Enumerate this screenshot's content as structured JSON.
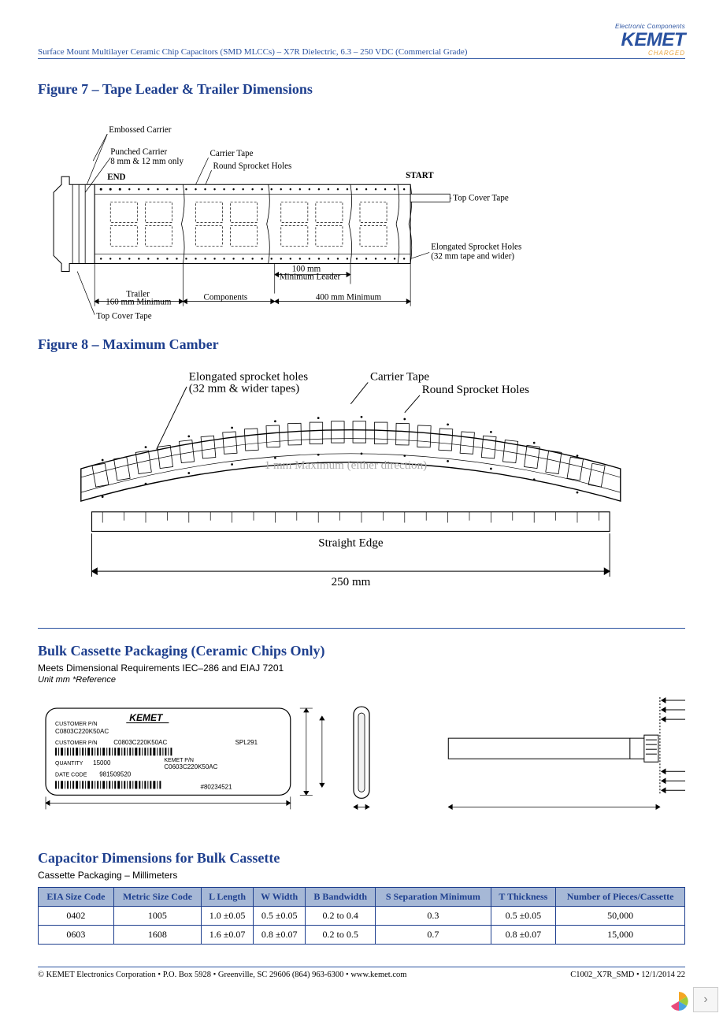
{
  "header": {
    "doc_title": "Surface Mount Multilayer Ceramic Chip Capacitors (SMD MLCCs) – X7R Dielectric, 6.3 – 250 VDC (Commercial Grade)",
    "logo_top": "Electronic Components",
    "logo_main": "KEMET",
    "logo_sub": "CHARGED"
  },
  "fig7": {
    "title": "Figure 7 – Tape Leader & Trailer Dimensions",
    "labels": {
      "embossed": "Embossed Carrier",
      "punched": "Punched Carrier\n8 mm & 12 mm only",
      "carrier_tape": "Carrier Tape",
      "round_holes": "Round Sprocket Holes",
      "start": "START",
      "end": "END",
      "top_cover": "Top Cover Tape",
      "top_cover2": "Top Cover Tape",
      "elongated": "Elongated Sprocket Holes\n(32 mm tape and wider)",
      "leader100": "100 mm\nMinimum Leader",
      "trailer": "Trailer\n160 mm Minimum",
      "components": "Components",
      "min400": "400 mm Minimum"
    }
  },
  "fig8": {
    "title": "Figure 8 – Maximum Camber",
    "labels": {
      "elongated": "Elongated sprocket holes\n(32 mm & wider tapes)",
      "carrier_tape": "Carrier Tape",
      "round_holes": "Round Sprocket Holes",
      "straight_edge": "Straight Edge",
      "note": "1 mm Maximum (either direction)",
      "len": "250 mm"
    }
  },
  "bulk": {
    "title": "Bulk Cassette Packaging (Ceramic Chips Only)",
    "meets": "Meets Dimensional Requirements IEC–286 and EIAJ 7201",
    "unit": "Unit mm *Reference",
    "card": {
      "kemet": "KEMET",
      "cust_pn_lbl": "CUSTOMER P/N",
      "cust_pn": "C0803C220K50AC",
      "cust_pn2_lbl": "CUSTOMER P/N",
      "cust_pn2": "C0803C220K50AC",
      "spl": "SPL291",
      "qty_lbl": "QUANTITY",
      "qty": "15000",
      "kemet_pn_lbl": "KEMET P/N",
      "kemet_pn": "C0603C220K50AC",
      "date_lbl": "DATE CODE",
      "date": "981509520",
      "batch": "#80234521"
    }
  },
  "dims": {
    "title": "Capacitor Dimensions for Bulk Cassette",
    "sub": "Cassette Packaging – Millimeters",
    "columns": [
      "EIA Size Code",
      "Metric Size Code",
      "L Length",
      "W Width",
      "B Bandwidth",
      "S Separation Minimum",
      "T Thickness",
      "Number of Pieces/Cassette"
    ],
    "rows": [
      [
        "0402",
        "1005",
        "1.0 ±0.05",
        "0.5 ±0.05",
        "0.2 to 0.4",
        "0.3",
        "0.5 ±0.05",
        "50,000"
      ],
      [
        "0603",
        "1608",
        "1.6 ±0.07",
        "0.8 ±0.07",
        "0.2 to 0.5",
        "0.7",
        "0.8 ±0.07",
        "15,000"
      ]
    ]
  },
  "footer": {
    "left": "© KEMET Electronics Corporation • P.O. Box 5928 • Greenville, SC 29606 (864) 963-6300 • www.kemet.com",
    "right": "C1002_X7R_SMD • 12/1/2014  22"
  }
}
